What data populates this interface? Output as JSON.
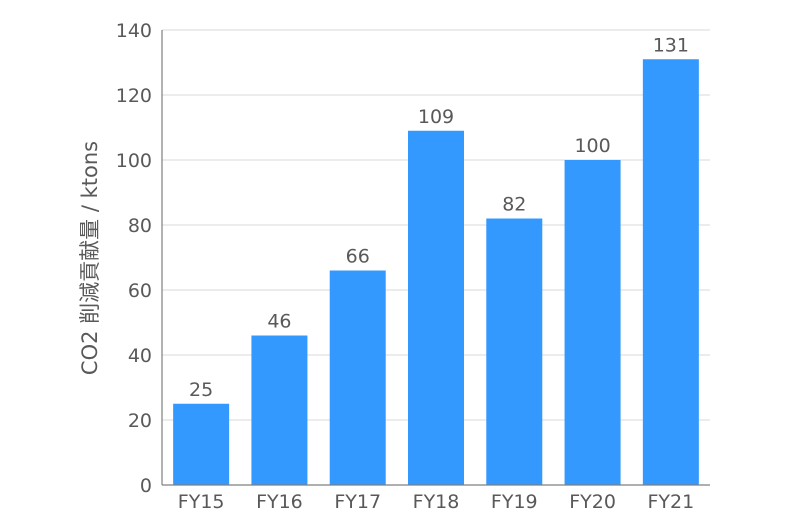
{
  "chart_data": {
    "type": "bar",
    "categories": [
      "FY15",
      "FY16",
      "FY17",
      "FY18",
      "FY19",
      "FY20",
      "FY21"
    ],
    "values": [
      25,
      46,
      66,
      109,
      82,
      100,
      131
    ],
    "data_labels": [
      "25",
      "46",
      "66",
      "109",
      "82",
      "100",
      "131"
    ],
    "title": "",
    "xlabel": "",
    "ylabel": "CO2 削減貢献量 / ktons",
    "ylim": [
      0,
      140
    ],
    "yticks": [
      0,
      20,
      40,
      60,
      80,
      100,
      120,
      140
    ],
    "grid": true,
    "legend": "none",
    "bar_color": "#3399ff"
  }
}
